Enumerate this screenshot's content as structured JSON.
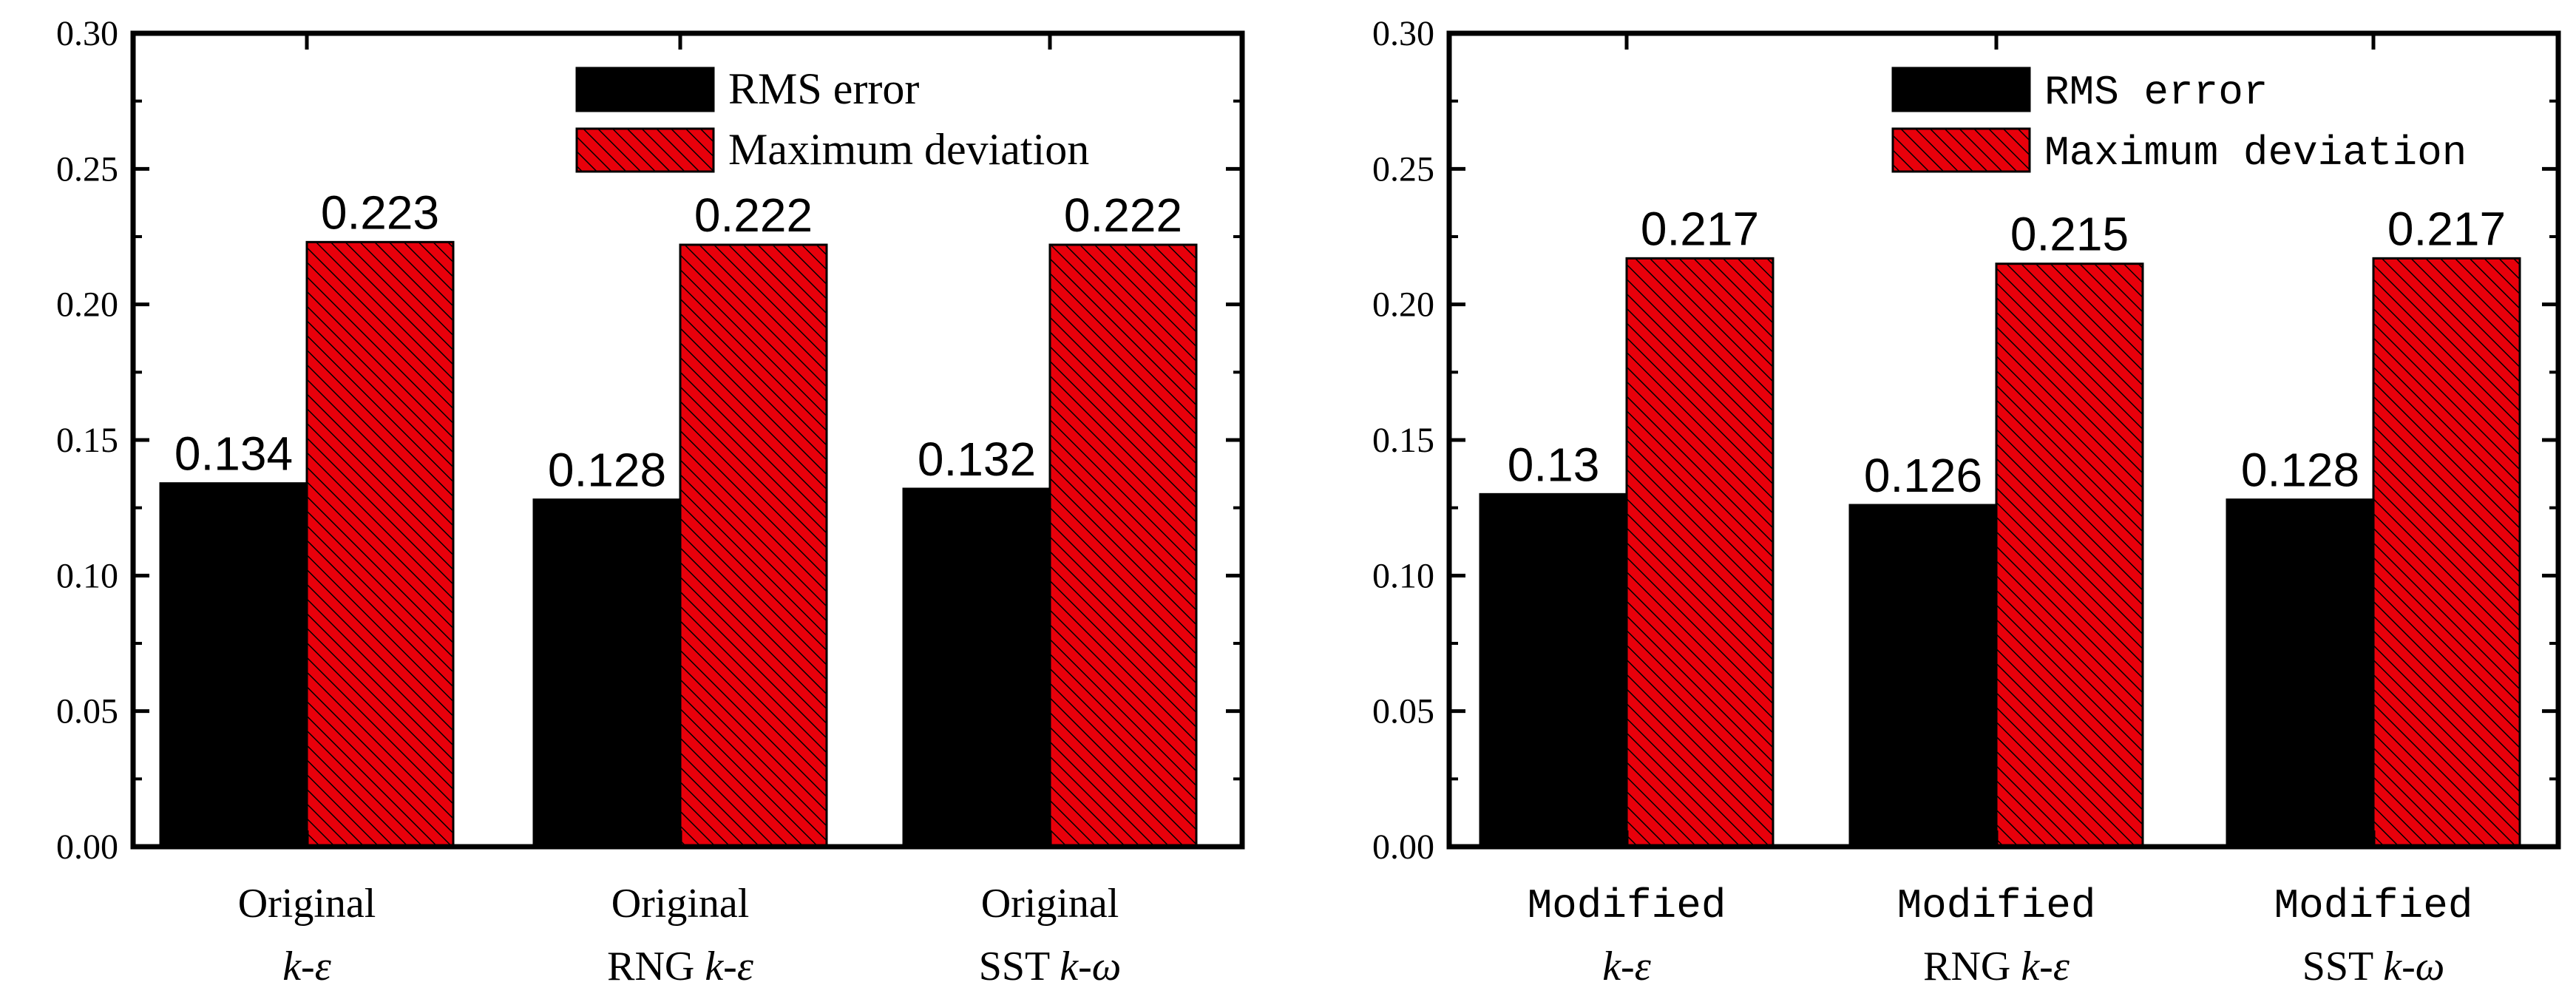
{
  "chart_data": [
    {
      "type": "bar",
      "categories": [
        {
          "line1": "Original",
          "line2_prefix": "",
          "line2_italic": "k-ε"
        },
        {
          "line1": "Original",
          "line2_prefix": "RNG ",
          "line2_italic": "k-ε"
        },
        {
          "line1": "Original",
          "line2_prefix": "SST ",
          "line2_italic": "k-ω"
        }
      ],
      "series": [
        {
          "name": "RMS error",
          "values": [
            0.134,
            0.128,
            0.132
          ],
          "value_labels": [
            "0.134",
            "0.128",
            "0.132"
          ],
          "color": "#000000",
          "pattern": "solid"
        },
        {
          "name": "Maximum deviation",
          "values": [
            0.223,
            0.222,
            0.222
          ],
          "value_labels": [
            "0.223",
            "0.222",
            "0.222"
          ],
          "color": "#e8000b",
          "pattern": "hatched"
        }
      ],
      "ylim": [
        0,
        0.3
      ],
      "yticks": [
        "0.00",
        "0.05",
        "0.10",
        "0.15",
        "0.20",
        "0.25",
        "0.30"
      ],
      "xlabel": "",
      "ylabel": "",
      "legend": "top-right",
      "grid": false
    },
    {
      "type": "bar",
      "categories": [
        {
          "line1": "Modified",
          "line2_prefix": "",
          "line2_italic": "k-ε"
        },
        {
          "line1": "Modified",
          "line2_prefix": "RNG ",
          "line2_italic": "k-ε"
        },
        {
          "line1": "Modified",
          "line2_prefix": "SST ",
          "line2_italic": "k-ω"
        }
      ],
      "series": [
        {
          "name": "RMS error",
          "values": [
            0.13,
            0.126,
            0.128
          ],
          "value_labels": [
            "0.13",
            "0.126",
            "0.128"
          ],
          "color": "#000000",
          "pattern": "solid"
        },
        {
          "name": "Maximum deviation",
          "values": [
            0.217,
            0.215,
            0.217
          ],
          "value_labels": [
            "0.217",
            "0.215",
            "0.217"
          ],
          "color": "#e8000b",
          "pattern": "hatched"
        }
      ],
      "ylim": [
        0,
        0.3
      ],
      "yticks": [
        "0.00",
        "0.05",
        "0.10",
        "0.15",
        "0.20",
        "0.25",
        "0.30"
      ],
      "xlabel": "",
      "ylabel": "",
      "legend": "top-right",
      "grid": false
    }
  ]
}
